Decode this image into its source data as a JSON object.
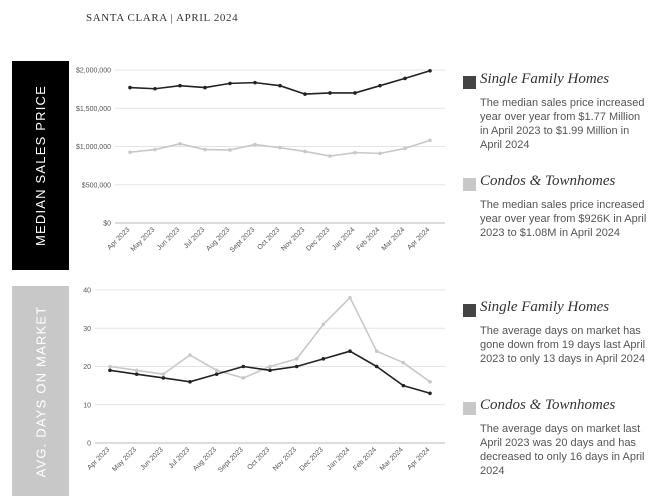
{
  "header": {
    "title": "SANTA CLARA | APRIL 2024"
  },
  "panels": {
    "price": {
      "band_label": "MEDIAN SALES PRICE",
      "legend": [
        {
          "title": "Single Family Homes",
          "color": "#444444",
          "description": "The median sales price increased year over year from $1.77 Million in April 2023 to $1.99 Million in April 2024"
        },
        {
          "title": "Condos & Townhomes",
          "color": "#c8c8c8",
          "description": "The median sales price increased year over year from $926K in April 2023 to $1.08M in April 2024"
        }
      ]
    },
    "dom": {
      "band_label": "AVG. DAYS ON MARKET",
      "legend": [
        {
          "title": "Single Family Homes",
          "color": "#444444",
          "description": "The average days on market has gone down from 19 days last April 2023 to only 13 days in April 2024"
        },
        {
          "title": "Condos & Townhomes",
          "color": "#c8c8c8",
          "description": "The average days on market last April 2023 was 20 days and has decreased to only 16 days in April 2024"
        }
      ]
    }
  },
  "chart_data": [
    {
      "type": "line",
      "title": "Median Sales Price",
      "categories": [
        "Apr 2023",
        "May 2023",
        "Jun 2023",
        "Jul 2023",
        "Aug 2023",
        "Sept 2023",
        "Oct 2023",
        "Nov 2023",
        "Dec 2023",
        "Jan 2024",
        "Feb 2024",
        "Mar 2024",
        "Apr 2024"
      ],
      "ylim": [
        0,
        2000000
      ],
      "yticks": [
        0,
        500000,
        1000000,
        1500000,
        2000000
      ],
      "ytick_labels": [
        "$0",
        "$500,000",
        "$1,000,000",
        "$1,500,000",
        "$2,000,000"
      ],
      "series": [
        {
          "name": "Single Family Homes",
          "color": "#222222",
          "values": [
            1770000,
            1755000,
            1795000,
            1770000,
            1825000,
            1835000,
            1795000,
            1685000,
            1700000,
            1700000,
            1795000,
            1890000,
            1990000
          ]
        },
        {
          "name": "Condos & Townhomes",
          "color": "#c8c8c8",
          "values": [
            926000,
            960000,
            1035000,
            960000,
            955000,
            1025000,
            985000,
            935000,
            875000,
            920000,
            910000,
            975000,
            1080000
          ]
        }
      ]
    },
    {
      "type": "line",
      "title": "Avg. Days on Market",
      "categories": [
        "Apr 2023",
        "May 2023",
        "Jun 2023",
        "Jul 2023",
        "Aug 2023",
        "Sept 2023",
        "Oct 2023",
        "Nov 2023",
        "Dec 2023",
        "Jan 2024",
        "Feb 2024",
        "Mar 2024",
        "Apr 2024"
      ],
      "ylim": [
        0,
        40
      ],
      "yticks": [
        0,
        10,
        20,
        30,
        40
      ],
      "ytick_labels": [
        "0",
        "10",
        "20",
        "30",
        "40"
      ],
      "series": [
        {
          "name": "Single Family Homes",
          "color": "#222222",
          "values": [
            19,
            18,
            17,
            16,
            18,
            20,
            19,
            20,
            22,
            24,
            20,
            15,
            13
          ]
        },
        {
          "name": "Condos & Townhomes",
          "color": "#c8c8c8",
          "values": [
            20,
            19,
            18,
            23,
            19,
            17,
            20,
            22,
            31,
            38,
            24,
            21,
            16
          ]
        }
      ]
    }
  ]
}
